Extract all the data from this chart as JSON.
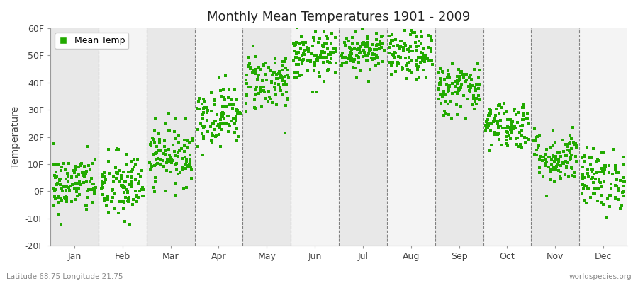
{
  "title": "Monthly Mean Temperatures 1901 - 2009",
  "ylabel": "Temperature",
  "xlabel_bottom": "Latitude 68.75 Longitude 21.75",
  "watermark": "worldspecies.org",
  "dot_color": "#22AA00",
  "background_color": "#FFFFFF",
  "plot_bg_color": "#FFFFFF",
  "band_color_dark": "#E8E8E8",
  "band_color_light": "#F4F4F4",
  "ylim": [
    -20,
    60
  ],
  "yticks": [
    -20,
    -10,
    0,
    10,
    20,
    30,
    40,
    50,
    60
  ],
  "ytick_labels": [
    "-20F",
    "-10F",
    "0F",
    "10F",
    "20F",
    "30F",
    "40F",
    "50F",
    "60F"
  ],
  "months": [
    "Jan",
    "Feb",
    "Mar",
    "Apr",
    "May",
    "Jun",
    "Jul",
    "Aug",
    "Sep",
    "Oct",
    "Nov",
    "Dec"
  ],
  "n_years": 109,
  "legend_label": "Mean Temp",
  "monthly_mean_temps_f": [
    2.5,
    1.5,
    13.5,
    28.0,
    40.5,
    49.5,
    52.0,
    50.0,
    38.0,
    24.5,
    12.5,
    4.5
  ],
  "monthly_std_f": [
    5.5,
    6.5,
    5.5,
    5.5,
    5.5,
    4.5,
    4.0,
    4.5,
    5.0,
    4.5,
    5.0,
    5.5
  ],
  "seed": 42
}
